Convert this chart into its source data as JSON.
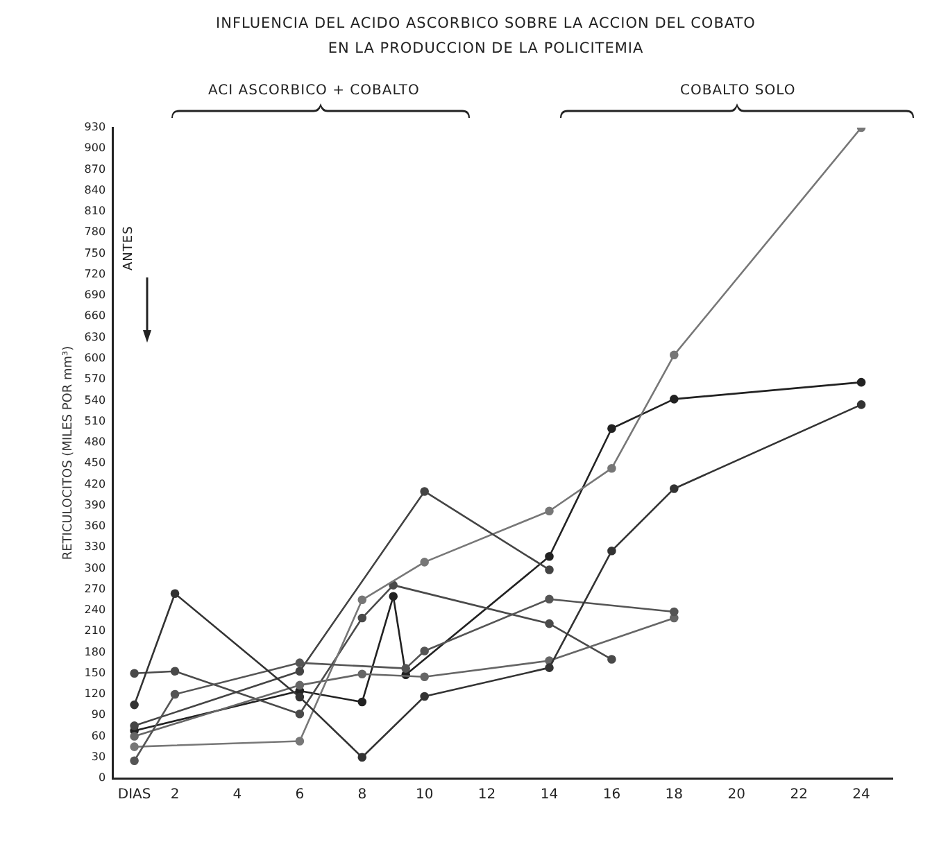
{
  "chart_data": {
    "type": "line",
    "title": "INFLUENCIA DEL ACIDO ASCORBICO SOBRE LA ACCION DEL COBATO EN LA PRODUCCION DE LA POLICITEMIA",
    "ylabel": "RETICULOCITOS (MILES POR mm³)",
    "annotations": [
      "ACI ASCORBICO + COBALTO",
      "COBALTO SOLO",
      "ANTES"
    ],
    "series": [
      {
        "color": "#333333",
        "x": [
          0.7,
          2,
          6,
          8,
          10,
          14,
          16,
          18,
          24
        ],
        "values": [
          105,
          264,
          116,
          30,
          117,
          158,
          325,
          414,
          534
        ]
      },
      {
        "color": "#555555",
        "x": [
          0.7,
          2,
          6,
          9.4,
          10,
          14,
          18
        ],
        "values": [
          25,
          120,
          165,
          157,
          182,
          256,
          238
        ]
      },
      {
        "color": "#444444",
        "x": [
          0.7,
          6,
          10,
          14
        ],
        "values": [
          75,
          153,
          410,
          298
        ]
      },
      {
        "color": "#777777",
        "x": [
          0.7,
          6,
          8,
          10,
          14,
          16,
          18,
          24
        ],
        "values": [
          45,
          53,
          255,
          309,
          382,
          443,
          605,
          930
        ]
      },
      {
        "color": "#666666",
        "x": [
          0.7,
          6,
          8,
          10,
          14,
          18
        ],
        "values": [
          60,
          133,
          149,
          145,
          168,
          229
        ]
      },
      {
        "color": "#4a4a4a",
        "x": [
          0.7,
          2,
          6,
          8,
          9,
          14,
          16
        ],
        "values": [
          150,
          153,
          92,
          229,
          276,
          221,
          170
        ]
      },
      {
        "color": "#222222",
        "x": [
          0.7,
          6,
          8,
          9,
          9.4,
          14,
          16,
          18,
          24
        ],
        "values": [
          68,
          125,
          109,
          260,
          148,
          317,
          500,
          542,
          566
        ]
      }
    ],
    "xlim": [
      0,
      25
    ],
    "xticks": [
      {
        "value": 0.7,
        "label": "DIAS"
      },
      2,
      4,
      6,
      8,
      10,
      12,
      14,
      16,
      18,
      20,
      22,
      24
    ],
    "ylim": [
      0,
      930
    ],
    "yticks": [
      0,
      30,
      60,
      90,
      120,
      150,
      180,
      210,
      240,
      270,
      300,
      330,
      360,
      390,
      420,
      450,
      480,
      510,
      540,
      570,
      600,
      630,
      660,
      690,
      720,
      750,
      780,
      810,
      840,
      870,
      900,
      930
    ],
    "grid": false,
    "legend": false,
    "marker": "circle",
    "line_style": "solid"
  }
}
